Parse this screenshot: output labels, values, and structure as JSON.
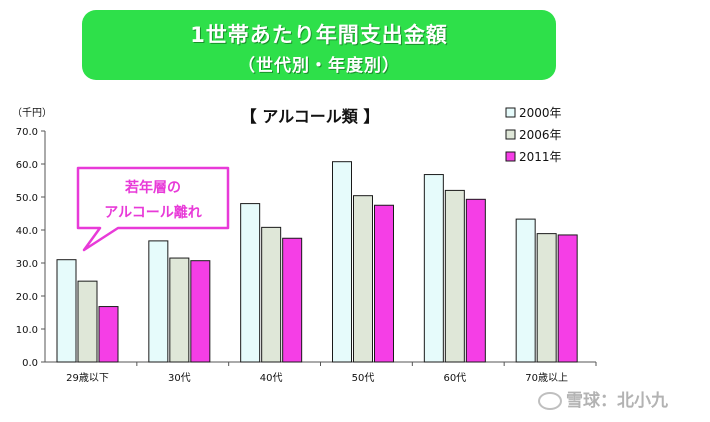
{
  "header": {
    "title": "1世帯あたり年間支出金額",
    "subtitle": "（世代別・年度別）"
  },
  "chart_data": {
    "type": "bar",
    "title": "【 アルコール類 】",
    "ylabel": "（千円）",
    "xlabel": "",
    "ylim": [
      0,
      70
    ],
    "yticks": [
      "0.0",
      "10.0",
      "20.0",
      "30.0",
      "40.0",
      "50.0",
      "60.0",
      "70.0"
    ],
    "categories": [
      "29歳以下",
      "30代",
      "40代",
      "50代",
      "60代",
      "70歳以上"
    ],
    "series": [
      {
        "name": "2000年",
        "values": [
          31.0,
          36.7,
          48.0,
          60.7,
          56.8,
          43.3
        ],
        "fill": "#e6fbfb"
      },
      {
        "name": "2006年",
        "values": [
          24.5,
          31.5,
          40.8,
          50.4,
          52.0,
          38.9
        ],
        "fill": "#dfe7d8"
      },
      {
        "name": "2011年",
        "values": [
          16.8,
          30.7,
          37.5,
          47.5,
          49.3,
          38.5
        ],
        "fill": "#f53ee6"
      }
    ],
    "legend_position": "top-right",
    "annotation": {
      "line1": "若年層の",
      "line2": "アルコール離れ"
    }
  },
  "colors": {
    "title_bg": "#2ee04a",
    "annotation_border": "#e83ad8"
  },
  "watermark": "雪球：北小九"
}
